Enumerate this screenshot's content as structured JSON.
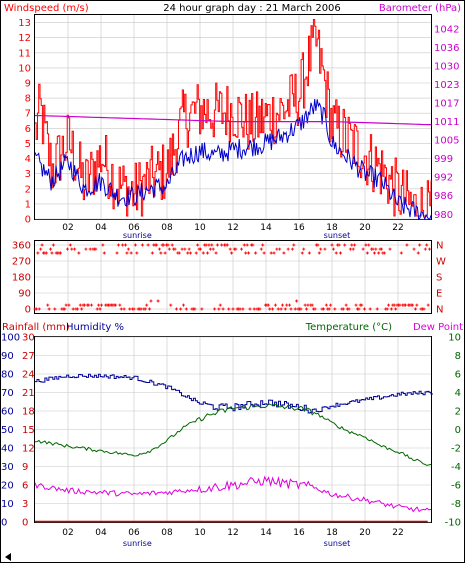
{
  "header": {
    "windspeed_label": "Windspeed (m/s)",
    "title": "24 hour graph day : 21 March 2006",
    "barometer_label": "Barometer (hPa)"
  },
  "lower_header": {
    "rainfall_label": "Rainfall (mm)",
    "humidity_label": "Humidity %",
    "temperature_label": "Temperature (°C)",
    "dewpoint_label": "Dew Point"
  },
  "colors": {
    "windspeed": "#ff0000",
    "wind_avg": "#0000cc",
    "barometer": "#cc00cc",
    "rainfall": "#cc0000",
    "humidity": "#000099",
    "temperature": "#006600",
    "dewpoint": "#dd00dd",
    "grid": "#c8c8c8",
    "frame": "#000000"
  },
  "chart_data": [
    {
      "type": "line",
      "panel": "wind_pressure",
      "x_ticks": [
        "02",
        "04",
        "06",
        "08",
        "10",
        "12",
        "14",
        "16",
        "18",
        "20",
        "22"
      ],
      "x_range": [
        0,
        24
      ],
      "ylim": [
        0,
        13.5
      ],
      "y_ticks": [
        "0",
        "1",
        "2",
        "3",
        "4",
        "5",
        "6",
        "7",
        "8",
        "9",
        "10",
        "11",
        "12",
        "13"
      ],
      "y2lim": [
        978,
        1045
      ],
      "y2_ticks": [
        "980",
        "986",
        "992",
        "999",
        "1005",
        "1011",
        "1017",
        "1023",
        "1030",
        "1036",
        "1042"
      ],
      "sunrise_label": "sunrise",
      "sunset_label": "sunset",
      "sunrise_hour": 6.2,
      "sunset_hour": 18.3,
      "gust_keys": [
        [
          0,
          5.5
        ],
        [
          0.3,
          7
        ],
        [
          1,
          3
        ],
        [
          2,
          5
        ],
        [
          3,
          2
        ],
        [
          4,
          4
        ],
        [
          5,
          2
        ],
        [
          6,
          1.5
        ],
        [
          7,
          2.5
        ],
        [
          8,
          3
        ],
        [
          9,
          6.5
        ],
        [
          10,
          7
        ],
        [
          11,
          6.8
        ],
        [
          12,
          7
        ],
        [
          13,
          6
        ],
        [
          14,
          6.5
        ],
        [
          15,
          7
        ],
        [
          16,
          8
        ],
        [
          16.5,
          10
        ],
        [
          17,
          11.5
        ],
        [
          17.5,
          9
        ],
        [
          18,
          6
        ],
        [
          19,
          5
        ],
        [
          20,
          4
        ],
        [
          21,
          3
        ],
        [
          22,
          1.5
        ],
        [
          23,
          0.5
        ],
        [
          23.8,
          0.3
        ]
      ],
      "avg_keys": [
        [
          0,
          4
        ],
        [
          1,
          2.5
        ],
        [
          2,
          3.8
        ],
        [
          3,
          2
        ],
        [
          4,
          2.5
        ],
        [
          5,
          1.5
        ],
        [
          6,
          1.5
        ],
        [
          7,
          2
        ],
        [
          8,
          2.2
        ],
        [
          9,
          4
        ],
        [
          10,
          4.5
        ],
        [
          11,
          4.2
        ],
        [
          12,
          4.6
        ],
        [
          13,
          4.8
        ],
        [
          14,
          5
        ],
        [
          15,
          5.5
        ],
        [
          16,
          6.2
        ],
        [
          17,
          7.5
        ],
        [
          17.5,
          6.8
        ],
        [
          18,
          5
        ],
        [
          19,
          4
        ],
        [
          20,
          3
        ],
        [
          21,
          2.5
        ],
        [
          22,
          1
        ],
        [
          23,
          0.5
        ],
        [
          23.8,
          0.2
        ]
      ],
      "pressure_keys": [
        [
          0,
          1012
        ],
        [
          6,
          1011
        ],
        [
          12,
          1010
        ],
        [
          18,
          1010
        ],
        [
          23.8,
          1009
        ]
      ]
    },
    {
      "type": "scatter",
      "panel": "wind_direction",
      "ylim": [
        0,
        360
      ],
      "y_ticks": [
        "360",
        "270",
        "180",
        "90",
        "0"
      ],
      "y2_ticks": [
        "N",
        "W",
        "S",
        "E",
        "N"
      ],
      "bands_deg": [
        360,
        337,
        315,
        0,
        22
      ],
      "bursts": [
        [
          4.2,
          5.2,
          22
        ],
        [
          7,
          7.5,
          45
        ],
        [
          15.8,
          16,
          45
        ],
        [
          21.5,
          23,
          22
        ]
      ]
    },
    {
      "type": "line",
      "panel": "temp_humidity",
      "x_ticks": [
        "02",
        "04",
        "06",
        "08",
        "10",
        "12",
        "14",
        "16",
        "18",
        "20",
        "22"
      ],
      "x_range": [
        0,
        24
      ],
      "ylim": [
        0,
        100
      ],
      "y_ticks_rain": [
        "0",
        "3",
        "6",
        "9",
        "12",
        "15",
        "18",
        "21",
        "24",
        "27",
        "30"
      ],
      "y_ticks_humidity": [
        "0",
        "10",
        "20",
        "30",
        "40",
        "50",
        "60",
        "70",
        "80",
        "90",
        "100"
      ],
      "y2lim": [
        -10,
        10
      ],
      "y2_ticks": [
        "-10",
        "-8",
        "-6",
        "-4",
        "-2",
        "0",
        "2",
        "4",
        "6",
        "8",
        "10"
      ],
      "sunrise_label": "sunrise",
      "sunset_label": "sunset",
      "sunrise_hour": 6.2,
      "sunset_hour": 18.3,
      "humidity_keys": [
        [
          0,
          76
        ],
        [
          2,
          79
        ],
        [
          4,
          79
        ],
        [
          6,
          78
        ],
        [
          8,
          73
        ],
        [
          10,
          64
        ],
        [
          11,
          62
        ],
        [
          12,
          62
        ],
        [
          14,
          65
        ],
        [
          16,
          62
        ],
        [
          17,
          60
        ],
        [
          18,
          63
        ],
        [
          20,
          66
        ],
        [
          22,
          69
        ],
        [
          23.8,
          70
        ]
      ],
      "temp_keys": [
        [
          0,
          -1.2
        ],
        [
          2,
          -1.8
        ],
        [
          4,
          -2.3
        ],
        [
          6,
          -2.8
        ],
        [
          7,
          -2.3
        ],
        [
          8,
          -1.2
        ],
        [
          9,
          0.2
        ],
        [
          10,
          1.2
        ],
        [
          11,
          1.8
        ],
        [
          12,
          2.3
        ],
        [
          14,
          2.6
        ],
        [
          16,
          2.3
        ],
        [
          17,
          1.8
        ],
        [
          18,
          0.7
        ],
        [
          19,
          -0.2
        ],
        [
          20,
          -0.8
        ],
        [
          21,
          -1.8
        ],
        [
          22,
          -2.4
        ],
        [
          23,
          -3.3
        ],
        [
          23.8,
          -3.8
        ]
      ],
      "dewpoint_keys": [
        [
          0,
          -6
        ],
        [
          2,
          -6.6
        ],
        [
          4,
          -6.8
        ],
        [
          6,
          -7
        ],
        [
          8,
          -6.8
        ],
        [
          10,
          -6.4
        ],
        [
          11,
          -6.2
        ],
        [
          12,
          -6
        ],
        [
          14,
          -5.5
        ],
        [
          15,
          -5.8
        ],
        [
          16,
          -6
        ],
        [
          17,
          -6.3
        ],
        [
          18,
          -7
        ],
        [
          20,
          -7.6
        ],
        [
          22,
          -8.4
        ],
        [
          23.8,
          -8.8
        ]
      ],
      "rain_keys": [
        [
          0,
          0
        ],
        [
          23.8,
          0
        ]
      ]
    }
  ]
}
